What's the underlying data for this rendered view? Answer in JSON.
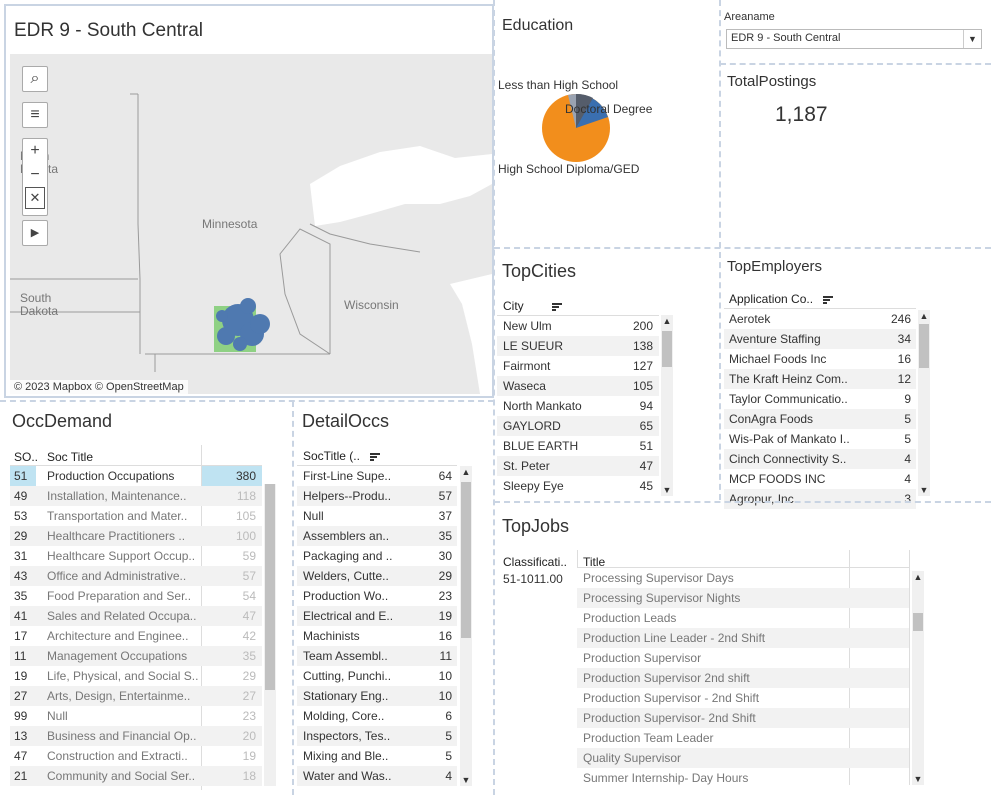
{
  "map": {
    "title": "EDR 9 - South Central",
    "labels": {
      "north_dakota": "North\nDakota",
      "minnesota": "Minnesota",
      "south_dakota": "South\nDakota",
      "wisconsin": "Wisconsin"
    },
    "attribution": "© 2023 Mapbox © OpenStreetMap",
    "tools": [
      "search-icon",
      "layers-icon",
      "zoom-in-icon",
      "zoom-out-icon",
      "pin-clear-icon",
      "play-icon"
    ]
  },
  "education": {
    "title": "Education",
    "labels": [
      "Less than High School",
      "Doctoral Degree",
      "High School Diploma/GED"
    ],
    "colors": {
      "hs": "#f28e1c",
      "other": "#3a6fb0",
      "dark": "#555d6b",
      "light": "#9aa3b2"
    }
  },
  "areaname": {
    "label": "Areaname",
    "value": "EDR 9 - South Central"
  },
  "total_postings": {
    "title": "TotalPostings",
    "value": "1,187"
  },
  "top_cities": {
    "title": "TopCities",
    "header": "City",
    "rows": [
      {
        "name": "New Ulm",
        "value": "200"
      },
      {
        "name": "LE SUEUR",
        "value": "138"
      },
      {
        "name": "Fairmont",
        "value": "127"
      },
      {
        "name": "Waseca",
        "value": "105"
      },
      {
        "name": "North Mankato",
        "value": "94"
      },
      {
        "name": "GAYLORD",
        "value": "65"
      },
      {
        "name": "BLUE EARTH",
        "value": "51"
      },
      {
        "name": "St. Peter",
        "value": "47"
      },
      {
        "name": "Sleepy Eye",
        "value": "45"
      }
    ]
  },
  "top_employers": {
    "title": "TopEmployers",
    "header": "Application Co..",
    "rows": [
      {
        "name": "Aerotek",
        "value": "246"
      },
      {
        "name": "Aventure Staffing",
        "value": "34"
      },
      {
        "name": "Michael Foods Inc",
        "value": "16"
      },
      {
        "name": "The Kraft Heinz Com..",
        "value": "12"
      },
      {
        "name": "Taylor Communicatio..",
        "value": "9"
      },
      {
        "name": "ConAgra Foods",
        "value": "5"
      },
      {
        "name": "Wis-Pak of Mankato I..",
        "value": "5"
      },
      {
        "name": "Cinch Connectivity S..",
        "value": "4"
      },
      {
        "name": "MCP FOODS INC",
        "value": "4"
      },
      {
        "name": "Agropur, Inc",
        "value": "3"
      }
    ]
  },
  "occ_demand": {
    "title": "OccDemand",
    "headers": {
      "code": "SO..",
      "title": "Soc Title"
    },
    "rows": [
      {
        "code": "51",
        "title": "Production Occupations",
        "value": "380"
      },
      {
        "code": "49",
        "title": "Installation, Maintenance..",
        "value": "118"
      },
      {
        "code": "53",
        "title": "Transportation and Mater..",
        "value": "105"
      },
      {
        "code": "29",
        "title": "Healthcare Practitioners ..",
        "value": "100"
      },
      {
        "code": "31",
        "title": "Healthcare Support Occup..",
        "value": "59"
      },
      {
        "code": "43",
        "title": "Office and Administrative..",
        "value": "57"
      },
      {
        "code": "35",
        "title": "Food Preparation and Ser..",
        "value": "54"
      },
      {
        "code": "41",
        "title": "Sales and Related Occupa..",
        "value": "47"
      },
      {
        "code": "17",
        "title": "Architecture and Enginee..",
        "value": "42"
      },
      {
        "code": "11",
        "title": "Management Occupations",
        "value": "35"
      },
      {
        "code": "19",
        "title": "Life, Physical, and Social S..",
        "value": "29"
      },
      {
        "code": "27",
        "title": "Arts, Design, Entertainme..",
        "value": "27"
      },
      {
        "code": "99",
        "title": "Null",
        "value": "23"
      },
      {
        "code": "13",
        "title": "Business and Financial Op..",
        "value": "20"
      },
      {
        "code": "47",
        "title": "Construction and Extracti..",
        "value": "19"
      },
      {
        "code": "21",
        "title": "Community and Social Ser..",
        "value": "18"
      }
    ]
  },
  "detail_occs": {
    "title": "DetailOccs",
    "header": "SocTitle (..",
    "rows": [
      {
        "name": "First-Line Supe..",
        "value": "64"
      },
      {
        "name": "Helpers--Produ..",
        "value": "57"
      },
      {
        "name": "Null",
        "value": "37"
      },
      {
        "name": "Assemblers an..",
        "value": "35"
      },
      {
        "name": "Packaging and ..",
        "value": "30"
      },
      {
        "name": "Welders, Cutte..",
        "value": "29"
      },
      {
        "name": "Production Wo..",
        "value": "23"
      },
      {
        "name": "Electrical and E..",
        "value": "19"
      },
      {
        "name": "Machinists",
        "value": "16"
      },
      {
        "name": "Team Assembl..",
        "value": "11"
      },
      {
        "name": "Cutting, Punchi..",
        "value": "10"
      },
      {
        "name": "Stationary Eng..",
        "value": "10"
      },
      {
        "name": "Molding, Core..",
        "value": "6"
      },
      {
        "name": "Inspectors, Tes..",
        "value": "5"
      },
      {
        "name": "Mixing and Ble..",
        "value": "5"
      },
      {
        "name": "Water and Was..",
        "value": "4"
      }
    ]
  },
  "top_jobs": {
    "title": "TopJobs",
    "headers": {
      "class": "Classificati..",
      "title": "Title"
    },
    "classification": "51-1011.00",
    "rows": [
      "Processing Supervisor Days",
      "Processing Supervisor Nights",
      "Production Leads",
      "Production Line Leader - 2nd Shift",
      "Production Supervisor",
      "Production Supervisor 2nd shift",
      "Production Supervisor - 2nd Shift",
      "Production Supervisor- 2nd Shift",
      "Production Team Leader",
      "Quality Supervisor",
      "Summer Internship- Day Hours"
    ]
  }
}
